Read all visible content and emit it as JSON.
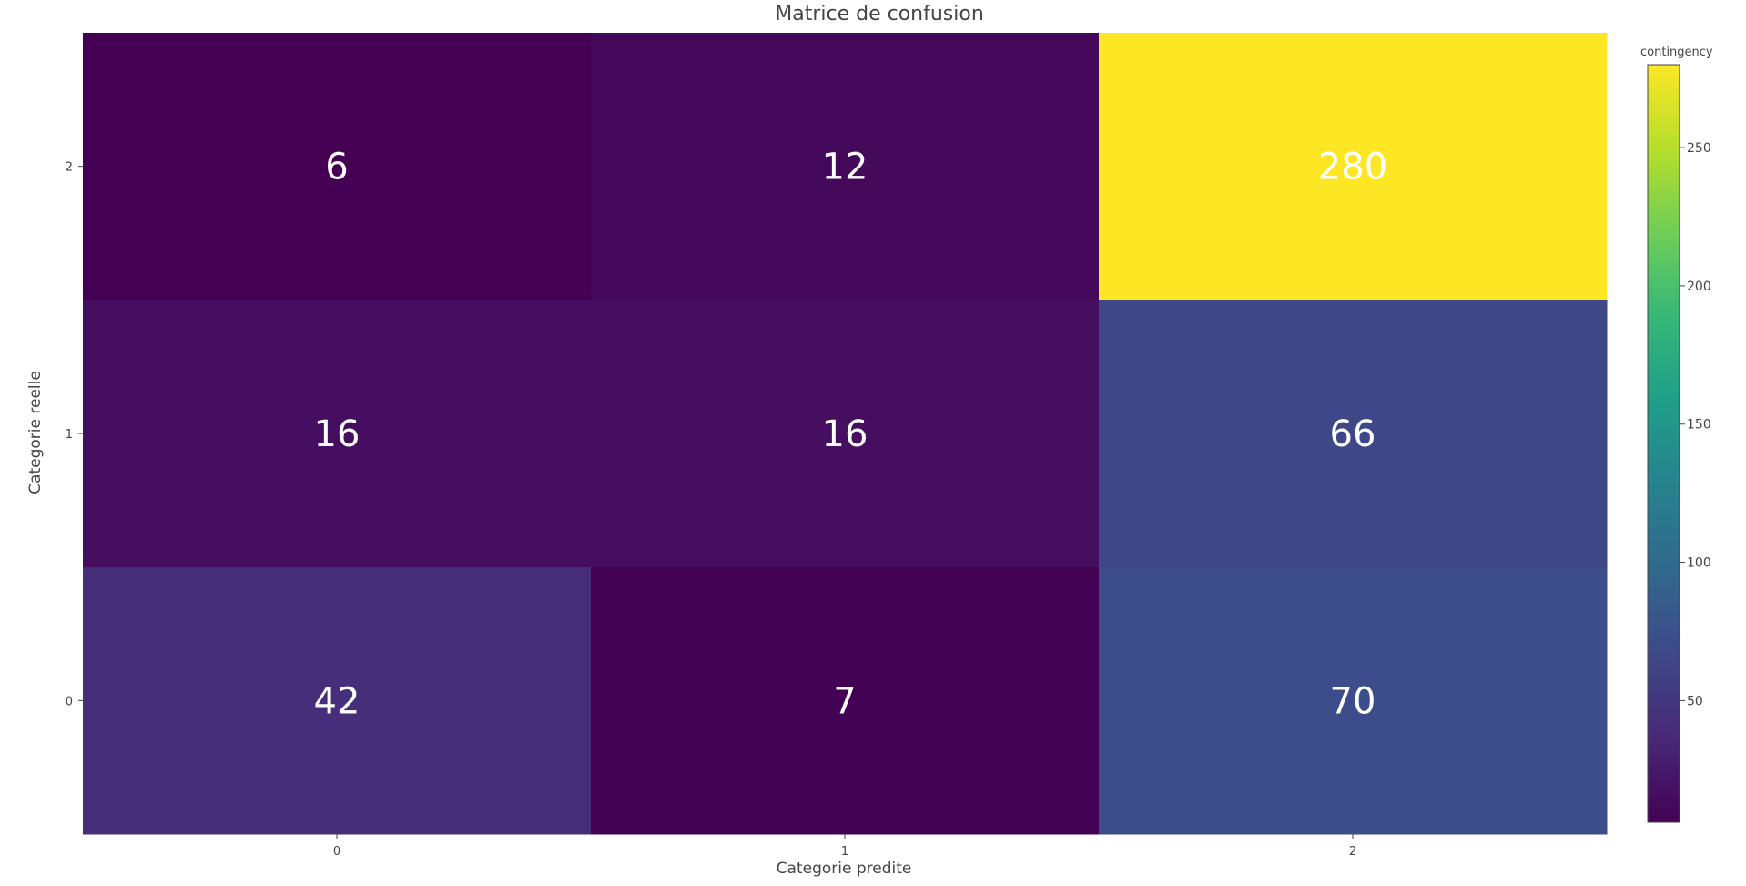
{
  "chart_data": {
    "type": "heatmap",
    "title": "Matrice de confusion",
    "xlabel": "Categorie predite",
    "ylabel": "Categorie reelle",
    "x_categories": [
      "0",
      "1",
      "2"
    ],
    "y_categories": [
      "0",
      "1",
      "2"
    ],
    "z": [
      [
        42,
        7,
        70
      ],
      [
        16,
        16,
        66
      ],
      [
        6,
        12,
        280
      ]
    ],
    "colorscale": "Viridis",
    "zmin": 6,
    "zmax": 280,
    "colorbar": {
      "title": "contingency",
      "ticks": [
        50,
        100,
        150,
        200,
        250
      ]
    },
    "grid": false
  }
}
